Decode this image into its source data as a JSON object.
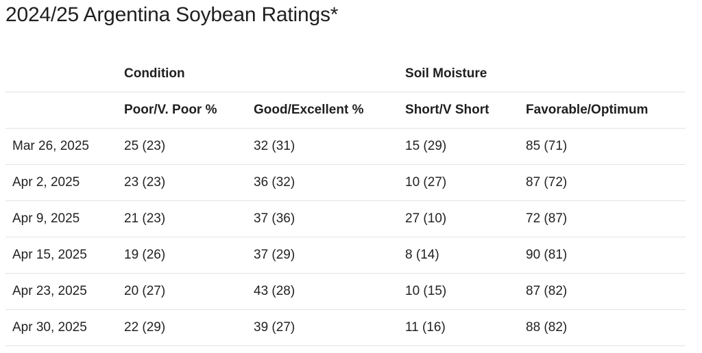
{
  "title": "2024/25 Argentina Soybean Ratings*",
  "table": {
    "groups": {
      "condition": "Condition",
      "soil_moisture": "Soil Moisture"
    },
    "columns": [
      "",
      "Poor/V. Poor %",
      "Good/Excellent %",
      "Short/V Short",
      "Favorable/Optimum"
    ],
    "rows": [
      [
        "Mar 26, 2025",
        "25 (23)",
        "32 (31)",
        "15 (29)",
        "85 (71)"
      ],
      [
        "Apr 2, 2025",
        "23 (23)",
        "36 (32)",
        "10 (27)",
        "87 (72)"
      ],
      [
        "Apr 9, 2025",
        "21 (23)",
        "37 (36)",
        "27 (10)",
        "72 (87)"
      ],
      [
        "Apr 15, 2025",
        "19 (26)",
        "37 (29)",
        "8 (14)",
        "90 (81)"
      ],
      [
        "Apr 23, 2025",
        "20 (27)",
        "43 (28)",
        "10 (15)",
        "87 (82)"
      ],
      [
        "Apr 30, 2025",
        "22 (29)",
        "39 (27)",
        "11 (16)",
        "88 (82)"
      ]
    ]
  }
}
